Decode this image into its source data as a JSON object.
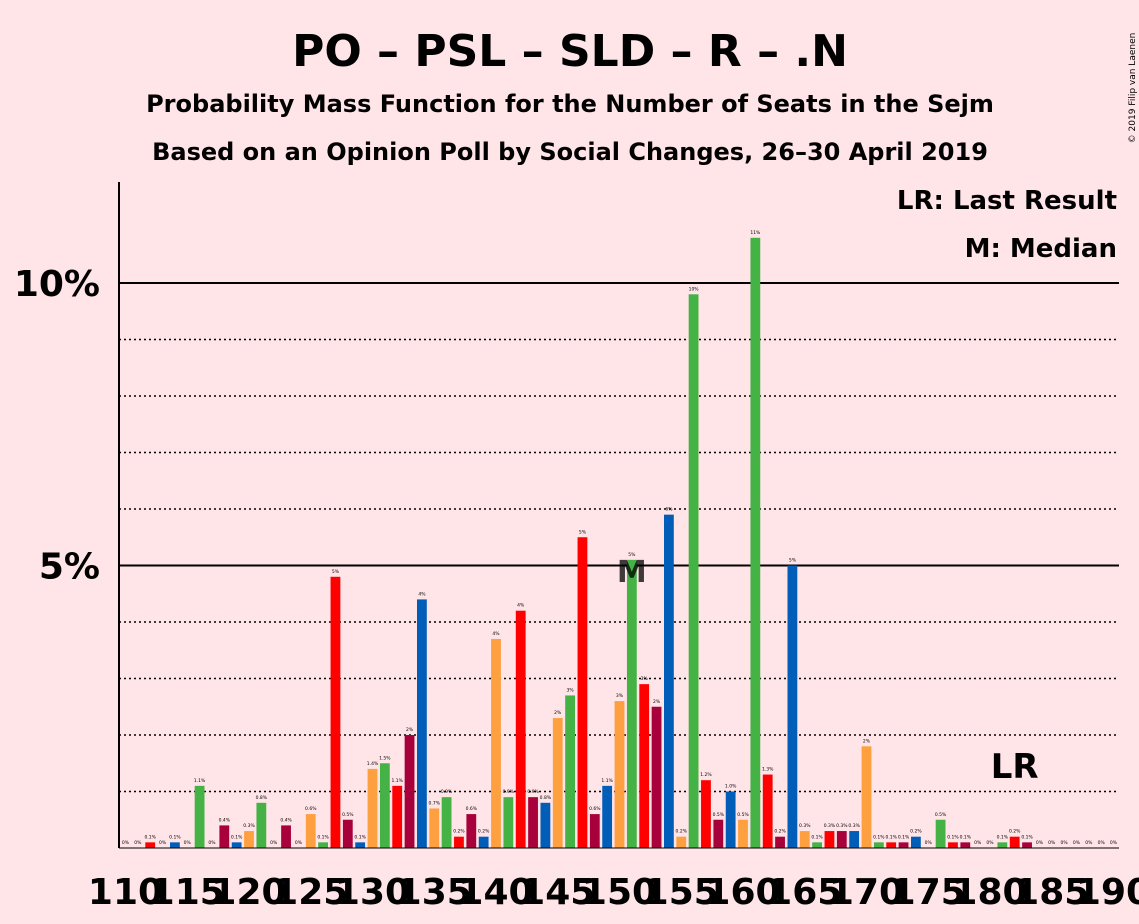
{
  "copyright": "© 2019 Filip van Laenen",
  "colors": {
    "green": "#44B244",
    "red": "#FF0000",
    "blue": "#005EB8",
    "darkred": "#A8003B",
    "orange": "#FFA040",
    "background": "#FFE4E8"
  },
  "chart_data": {
    "type": "bar",
    "title": "PO – PSL – SLD – R – .N",
    "subtitle": "Probability Mass Function for the Number of Seats in the Sejm",
    "subtitle2": "Based on an Opinion Poll by Social Changes, 26–30 April 2019",
    "legend": {
      "lr": "LR: Last Result",
      "m": "M: Median"
    },
    "ylim": [
      0,
      11.8
    ],
    "yticks": [
      {
        "value": 5,
        "label": "5%"
      },
      {
        "value": 10,
        "label": "10%"
      }
    ],
    "minor_gridlines": [
      1,
      2,
      3,
      4,
      6,
      7,
      8,
      9
    ],
    "xtick_labels": [
      "110",
      "115",
      "120",
      "125",
      "130",
      "135",
      "140",
      "145",
      "150",
      "155",
      "160",
      "165",
      "170",
      "175",
      "180",
      "185",
      "190"
    ],
    "median_seat": 151,
    "median_label": "M",
    "last_result_seat": 182,
    "last_result_label": "LR",
    "x": [
      110,
      111,
      112,
      113,
      114,
      115,
      116,
      117,
      118,
      119,
      120,
      121,
      122,
      123,
      124,
      125,
      126,
      127,
      128,
      129,
      130,
      131,
      132,
      133,
      134,
      135,
      136,
      137,
      138,
      139,
      140,
      141,
      142,
      143,
      144,
      145,
      146,
      147,
      148,
      149,
      150,
      151,
      152,
      153,
      154,
      155,
      156,
      157,
      158,
      159,
      160,
      161,
      162,
      163,
      164,
      165,
      166,
      167,
      168,
      169,
      170,
      171,
      172,
      173,
      174,
      175,
      176,
      177,
      178,
      179,
      180,
      181,
      182,
      183,
      184,
      185,
      186,
      187,
      188,
      189,
      190
    ],
    "values": [
      0,
      0,
      0.1,
      0,
      0.1,
      0,
      1.1,
      0,
      0.4,
      0.1,
      0.3,
      0.8,
      0,
      0.4,
      0,
      0.6,
      0.1,
      4.8,
      0.5,
      0.1,
      1.4,
      1.5,
      1.1,
      2.0,
      4.4,
      0.7,
      0.9,
      0.2,
      0.6,
      0.2,
      3.7,
      0.9,
      4.2,
      0.9,
      0.8,
      2.3,
      2.7,
      5.5,
      0.6,
      1.1,
      2.6,
      5.1,
      2.9,
      2.5,
      5.9,
      0.2,
      9.8,
      1.2,
      0.5,
      1.0,
      0.5,
      10.8,
      1.3,
      0.2,
      5.0,
      0.3,
      0.1,
      0.3,
      0.3,
      0.3,
      1.8,
      0.1,
      0.1,
      0.1,
      0.2,
      0,
      0.5,
      0.1,
      0.1,
      0,
      0,
      0.1,
      0.2,
      0.1,
      0,
      0,
      0,
      0,
      0,
      0,
      0
    ],
    "labels": [
      "0%",
      "0%",
      "0.1%",
      "0%",
      "0.1%",
      "0%",
      "1.1%",
      "0%",
      "0.4%",
      "0.1%",
      "0.3%",
      "0.8%",
      "0%",
      "0.4%",
      "0%",
      "0.6%",
      "0.1%",
      "5%",
      "0.5%",
      "0.1%",
      "1.4%",
      "1.5%",
      "1.1%",
      "2%",
      "4%",
      "0.7%",
      "0.9%",
      "0.2%",
      "0.6%",
      "0.2%",
      "4%",
      "0.9%",
      "4%",
      "0.9%",
      "0.8%",
      "2%",
      "3%",
      "5%",
      "0.6%",
      "1.1%",
      "3%",
      "5%",
      "3%",
      "2%",
      "6%",
      "0.2%",
      "10%",
      "1.2%",
      "0.5%",
      "1.0%",
      "0.5%",
      "11%",
      "1.3%",
      "0.2%",
      "5%",
      "0.3%",
      "0.1%",
      "0.3%",
      "0.3%",
      "0.3%",
      "2%",
      "0.1%",
      "0.1%",
      "0.1%",
      "0.2%",
      "0%",
      "0.5%",
      "0.1%",
      "0.1%",
      "0%",
      "0%",
      "0.1%",
      "0.2%",
      "0.1%",
      "0%",
      "0%",
      "0%",
      "0%",
      "0%",
      "0%",
      "0%"
    ],
    "bar_colors": [
      "#005EB8",
      "#44B244",
      "#FF0000",
      "#A8003B",
      "#005EB8",
      "#A8003B",
      "#44B244",
      "#FFA040",
      "#A8003B",
      "#005EB8",
      "#FFA040",
      "#44B244",
      "#A8003B",
      "#A8003B",
      "#44B244",
      "#FFA040",
      "#44B244",
      "#FF0000",
      "#A8003B",
      "#005EB8",
      "#FFA040",
      "#44B244",
      "#FF0000",
      "#A8003B",
      "#005EB8",
      "#FFA040",
      "#44B244",
      "#FF0000",
      "#A8003B",
      "#005EB8",
      "#FFA040",
      "#44B244",
      "#FF0000",
      "#A8003B",
      "#005EB8",
      "#FFA040",
      "#44B244",
      "#FF0000",
      "#A8003B",
      "#005EB8",
      "#FFA040",
      "#44B244",
      "#FF0000",
      "#A8003B",
      "#005EB8",
      "#FFA040",
      "#44B244",
      "#FF0000",
      "#A8003B",
      "#005EB8",
      "#FFA040",
      "#44B244",
      "#FF0000",
      "#A8003B",
      "#005EB8",
      "#FFA040",
      "#44B244",
      "#FF0000",
      "#A8003B",
      "#005EB8",
      "#FFA040",
      "#44B244",
      "#FF0000",
      "#A8003B",
      "#005EB8",
      "#FFA040",
      "#44B244",
      "#FF0000",
      "#A8003B",
      "#005EB8",
      "#FFA040",
      "#44B244",
      "#FF0000",
      "#A8003B",
      "#005EB8",
      "#FFA040",
      "#44B244",
      "#FF0000",
      "#A8003B",
      "#005EB8",
      "#FFA040"
    ]
  }
}
